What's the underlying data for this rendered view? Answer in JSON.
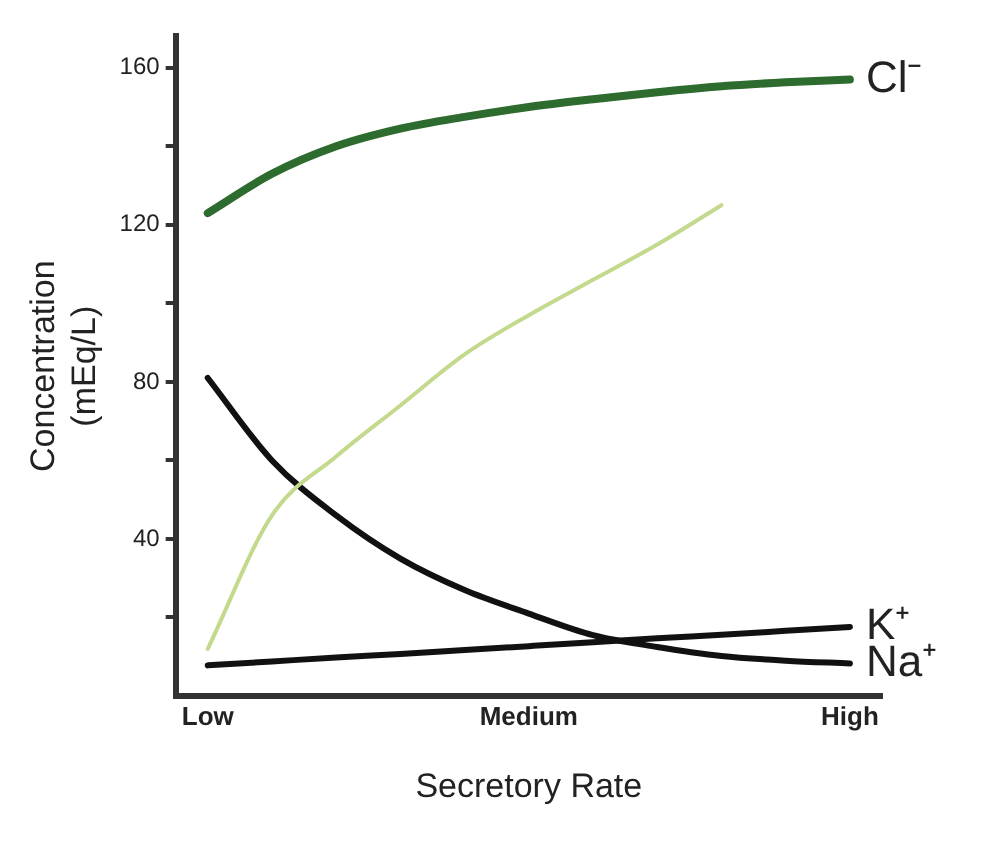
{
  "chart_data": {
    "type": "line",
    "xlabel": "Secretory Rate",
    "ylabel": "Concentration\n(mEq/L)",
    "categories": [
      "Low",
      null,
      null,
      null,
      null,
      "Medium",
      null,
      null,
      null,
      null,
      "High"
    ],
    "ylim": [
      0,
      168
    ],
    "yticks": [
      {
        "value": 20,
        "label": null
      },
      40,
      {
        "value": 60,
        "label": null
      },
      80,
      {
        "value": 100,
        "label": null
      },
      120,
      {
        "value": 140,
        "label": null
      },
      160
    ],
    "grid": false,
    "legend": false,
    "marker": "none",
    "line_style": "solid",
    "series": [
      {
        "name": "Cl⁻",
        "color": "#2e6b2e",
        "values": [
          123,
          133,
          140,
          144.5,
          147.5,
          150,
          152,
          153.8,
          155.3,
          156.3,
          157
        ]
      },
      {
        "color": "#c3d98c",
        "values": [
          12,
          46,
          61,
          74,
          87,
          97,
          106,
          115,
          125,
          null,
          null
        ]
      },
      {
        "name": "K⁺",
        "color": "#111111",
        "values": [
          7.8,
          8.8,
          9.8,
          10.7,
          11.7,
          12.7,
          13.7,
          14.7,
          15.6,
          16.6,
          17.6
        ]
      },
      {
        "name": "Na⁺",
        "color": "#111111",
        "values": [
          81,
          60,
          46,
          35,
          27,
          21,
          15.5,
          12.5,
          10.2,
          9,
          8.3
        ]
      }
    ]
  }
}
